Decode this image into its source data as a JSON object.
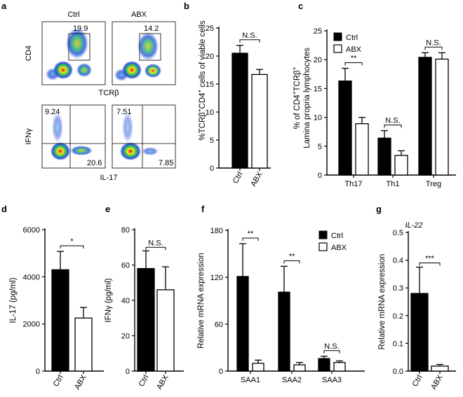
{
  "panels": {
    "a": {
      "label": "a",
      "columns": [
        "Ctrl",
        "ABX"
      ],
      "top_ylabel": "CD4",
      "top_xlabel": "TCRβ",
      "bottom_ylabel": "IFNγ",
      "bottom_xlabel": "IL-17",
      "ctrl_cd4_gate": "19.9",
      "abx_cd4_gate": "14.2",
      "ctrl_ifng_q": "9.24",
      "ctrl_il17_q": "20.6",
      "abx_ifng_q": "7.51",
      "abx_il17_q": "7.85"
    }
  },
  "legend": {
    "ctrl": "Ctrl",
    "abx": "ABX"
  },
  "colors": {
    "ctrl": "#000000",
    "abx": "#ffffff",
    "axis": "#000000"
  },
  "chart_data": [
    {
      "panel": "b",
      "type": "bar",
      "categories": [
        "Ctrl",
        "ABX"
      ],
      "values": [
        20.5,
        16.7
      ],
      "errors": [
        1.4,
        0.9
      ],
      "ylabel_parts": [
        "%TCRβ",
        "+",
        "CD4",
        "+",
        " cells of viable cells"
      ],
      "ylim": [
        0,
        25
      ],
      "yticks": [
        0,
        5,
        10,
        15,
        20,
        25
      ],
      "annotations": [
        {
          "text": "N.S.",
          "between": [
            0,
            1
          ]
        }
      ]
    },
    {
      "panel": "c",
      "type": "bar",
      "categories": [
        "Th17",
        "Th1",
        "Treg"
      ],
      "series": [
        {
          "name": "Ctrl",
          "values": [
            16.3,
            6.4,
            20.4
          ],
          "errors": [
            2.2,
            1.3,
            0.8
          ]
        },
        {
          "name": "ABX",
          "values": [
            8.9,
            3.4,
            20.1
          ],
          "errors": [
            1.1,
            0.8,
            1.1
          ]
        }
      ],
      "ylabel_line1_parts": [
        "% of CD4",
        "+",
        "TCRβ",
        "+"
      ],
      "ylabel_line2": "Lamina propria lymphocytes",
      "ylim": [
        0,
        25
      ],
      "yticks": [
        0,
        5,
        10,
        15,
        20,
        25
      ],
      "annotations": [
        {
          "text": "**",
          "group": 0
        },
        {
          "text": "N.S.",
          "group": 1
        },
        {
          "text": "N.S.",
          "group": 2
        }
      ]
    },
    {
      "panel": "d",
      "type": "bar",
      "categories": [
        "Ctrl",
        "ABX"
      ],
      "values": [
        4300,
        2250
      ],
      "errors": [
        780,
        450
      ],
      "ylabel": "IL-17 (pg/ml)",
      "ylim": [
        0,
        6000
      ],
      "yticks": [
        0,
        2000,
        4000,
        6000
      ],
      "annotations": [
        {
          "text": "*",
          "between": [
            0,
            1
          ]
        }
      ]
    },
    {
      "panel": "e",
      "type": "bar",
      "categories": [
        "Ctrl",
        "ABX"
      ],
      "values": [
        58,
        46
      ],
      "errors": [
        10,
        13
      ],
      "ylabel": "IFNγ (pg/ml)",
      "ylim": [
        0,
        80
      ],
      "yticks": [
        0,
        20,
        40,
        60,
        80
      ],
      "annotations": [
        {
          "text": "N.S.",
          "between": [
            0,
            1
          ]
        }
      ]
    },
    {
      "panel": "f",
      "type": "bar",
      "categories": [
        "SAA1",
        "SAA2",
        "SAA3"
      ],
      "series": [
        {
          "name": "Ctrl",
          "values": [
            121,
            101,
            16
          ],
          "errors": [
            42,
            33,
            3
          ]
        },
        {
          "name": "ABX",
          "values": [
            10,
            8,
            11
          ],
          "errors": [
            4,
            3,
            2
          ]
        }
      ],
      "ylabel": "Relative mRNA expression",
      "ylim": [
        0,
        180
      ],
      "yticks": [
        0,
        60,
        120,
        180
      ],
      "annotations": [
        {
          "text": "**",
          "group": 0
        },
        {
          "text": "**",
          "group": 1
        },
        {
          "text": "N.S.",
          "group": 2
        }
      ]
    },
    {
      "panel": "g",
      "type": "bar",
      "title": "IL-22",
      "categories": [
        "Ctrl",
        "ABX"
      ],
      "values": [
        0.28,
        0.018
      ],
      "errors": [
        0.095,
        0.006
      ],
      "ylabel": "Relative  mRNA expression",
      "ylim": [
        0,
        0.5
      ],
      "yticks": [
        0.0,
        0.1,
        0.2,
        0.3,
        0.4,
        0.5
      ],
      "annotations": [
        {
          "text": "***",
          "between": [
            0,
            1
          ]
        }
      ]
    }
  ]
}
